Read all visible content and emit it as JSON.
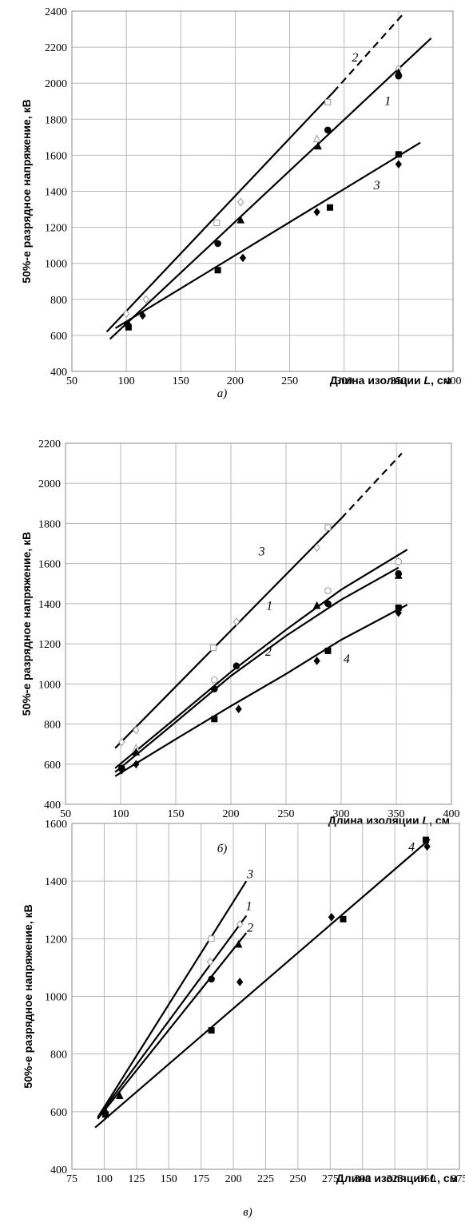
{
  "chart_data": [
    {
      "type": "scatter",
      "panel_label": "а)",
      "ylabel": "50%-е разрядное напряжение, кВ",
      "xlabel_prefix": "Длина изоляции ",
      "xlabel_var": "L",
      "xlabel_suffix": ", см",
      "xlim": [
        50,
        400
      ],
      "ylim": [
        400,
        2400
      ],
      "xticks": [
        50,
        100,
        150,
        200,
        250,
        300,
        350,
        400
      ],
      "yticks": [
        400,
        600,
        800,
        1000,
        1200,
        1400,
        1600,
        1800,
        2000,
        2200,
        2400
      ],
      "grid": true,
      "lines": [
        {
          "name": "1",
          "points": [
            [
              85,
              580
            ],
            [
              380,
              2250
            ]
          ],
          "dashed": false
        },
        {
          "name": "2",
          "points": [
            [
              82,
              620
            ],
            [
              290,
              1950
            ]
          ],
          "dashed": false
        },
        {
          "name": "2",
          "points": [
            [
              290,
              1950
            ],
            [
              355,
              2390
            ]
          ],
          "dashed": true
        },
        {
          "name": "3",
          "points": [
            [
              90,
              640
            ],
            [
              370,
              1670
            ]
          ],
          "dashed": false
        }
      ],
      "line_labels": [
        {
          "text": "2",
          "x": 310,
          "y": 2120
        },
        {
          "text": "1",
          "x": 340,
          "y": 1880
        },
        {
          "text": "3",
          "x": 330,
          "y": 1410
        }
      ],
      "markers": [
        {
          "shape": "square-open",
          "points": [
            [
              183,
              1225
            ],
            [
              285,
              1895
            ]
          ]
        },
        {
          "shape": "diamond-open",
          "points": [
            [
              100,
              720
            ],
            [
              118,
              800
            ],
            [
              205,
              1340
            ],
            [
              350,
              2080
            ]
          ]
        },
        {
          "shape": "triangle-open",
          "points": [
            [
              275,
              1690
            ]
          ]
        },
        {
          "shape": "circle-filled",
          "points": [
            [
              101,
              660
            ],
            [
              184,
              1110
            ],
            [
              285,
              1740
            ],
            [
              350,
              2040
            ]
          ]
        },
        {
          "shape": "triangle-filled",
          "points": [
            [
              205,
              1240
            ],
            [
              276,
              1650
            ],
            [
              350,
              2060
            ]
          ]
        },
        {
          "shape": "square-filled",
          "points": [
            [
              102,
              645
            ],
            [
              184,
              962
            ],
            [
              287,
              1310
            ],
            [
              350,
              1605
            ]
          ]
        },
        {
          "shape": "diamond-filled",
          "points": [
            [
              115,
              710
            ],
            [
              207,
              1030
            ],
            [
              275,
              1285
            ],
            [
              350,
              1550
            ]
          ]
        }
      ]
    },
    {
      "type": "scatter",
      "panel_label": "б)",
      "ylabel": "50%-е разрядное напряжение, кВ",
      "xlabel_prefix": "Длина изоляции ",
      "xlabel_var": "L",
      "xlabel_suffix": ", см",
      "xlim": [
        50,
        400
      ],
      "ylim": [
        400,
        2200
      ],
      "xticks": [
        50,
        100,
        150,
        200,
        250,
        300,
        350,
        400
      ],
      "yticks": [
        400,
        600,
        800,
        1000,
        1200,
        1400,
        1600,
        1800,
        2000,
        2200
      ],
      "grid": true,
      "lines": [
        {
          "name": "3",
          "points": [
            [
              95,
              680
            ],
            [
              300,
              1825
            ]
          ],
          "dashed": false
        },
        {
          "name": "3",
          "points": [
            [
              300,
              1825
            ],
            [
              355,
              2150
            ]
          ],
          "dashed": true
        },
        {
          "name": "1",
          "points": [
            [
              95,
              580
            ],
            [
              150,
              830
            ],
            [
              200,
              1060
            ],
            [
              250,
              1270
            ],
            [
              300,
              1470
            ],
            [
              360,
              1670
            ]
          ],
          "dashed": false
        },
        {
          "name": "2",
          "points": [
            [
              95,
              560
            ],
            [
              150,
              810
            ],
            [
              200,
              1040
            ],
            [
              250,
              1240
            ],
            [
              300,
              1420
            ],
            [
              352,
              1580
            ]
          ],
          "dashed": false
        },
        {
          "name": "4",
          "points": [
            [
              95,
              540
            ],
            [
              150,
              725
            ],
            [
              200,
              890
            ],
            [
              250,
              1050
            ],
            [
              300,
              1220
            ],
            [
              360,
              1395
            ]
          ],
          "dashed": false
        }
      ],
      "line_labels": [
        {
          "text": "3",
          "x": 228,
          "y": 1640
        },
        {
          "text": "1",
          "x": 235,
          "y": 1370
        },
        {
          "text": "2",
          "x": 234,
          "y": 1140
        },
        {
          "text": "4",
          "x": 305,
          "y": 1105
        }
      ],
      "markers": [
        {
          "shape": "square-open",
          "points": [
            [
              184,
              1180
            ],
            [
              288,
              1780
            ]
          ]
        },
        {
          "shape": "diamond-open",
          "points": [
            [
              101,
              710
            ],
            [
              114,
              770
            ],
            [
              205,
              1310
            ],
            [
              278,
              1680
            ],
            [
              352,
              1610
            ]
          ]
        },
        {
          "shape": "circle-open",
          "points": [
            [
              185,
              1020
            ],
            [
              288,
              1465
            ],
            [
              352,
              1610
            ]
          ]
        },
        {
          "shape": "triangle-open",
          "points": [
            [
              114,
              680
            ]
          ]
        },
        {
          "shape": "circle-filled",
          "points": [
            [
              101,
              580
            ],
            [
              185,
              975
            ],
            [
              205,
              1090
            ],
            [
              288,
              1400
            ],
            [
              352,
              1550
            ]
          ]
        },
        {
          "shape": "triangle-filled",
          "points": [
            [
              114,
              660
            ],
            [
              278,
              1390
            ],
            [
              352,
              1540
            ]
          ]
        },
        {
          "shape": "square-filled",
          "points": [
            [
              185,
              825
            ],
            [
              288,
              1165
            ],
            [
              352,
              1380
            ]
          ]
        },
        {
          "shape": "diamond-filled",
          "points": [
            [
              101,
              570
            ],
            [
              114,
              600
            ],
            [
              207,
              875
            ],
            [
              278,
              1115
            ],
            [
              352,
              1355
            ]
          ]
        }
      ]
    },
    {
      "type": "scatter",
      "panel_label": "в)",
      "ylabel": "50%-е разрядное напряжение, кВ",
      "xlabel_prefix": "Длина изоляции ",
      "xlabel_var": "L",
      "xlabel_suffix": ", см",
      "xlim": [
        75,
        375
      ],
      "ylim": [
        400,
        1600
      ],
      "xticks": [
        75,
        100,
        125,
        150,
        175,
        200,
        225,
        250,
        275,
        300,
        325,
        350,
        375
      ],
      "yticks": [
        400,
        600,
        800,
        1000,
        1200,
        1400,
        1600
      ],
      "grid": true,
      "lines": [
        {
          "name": "3",
          "points": [
            [
              95,
              580
            ],
            [
              210,
              1400
            ]
          ],
          "dashed": false
        },
        {
          "name": "1",
          "points": [
            [
              95,
              580
            ],
            [
              210,
              1280
            ]
          ],
          "dashed": false
        },
        {
          "name": "2",
          "points": [
            [
              95,
              575
            ],
            [
              210,
              1220
            ]
          ],
          "dashed": false
        },
        {
          "name": "4",
          "points": [
            [
              93,
              545
            ],
            [
              352,
              1545
            ]
          ],
          "dashed": false
        }
      ],
      "line_labels": [
        {
          "text": "3",
          "x": 213,
          "y": 1410
        },
        {
          "text": "1",
          "x": 212,
          "y": 1300
        },
        {
          "text": "2",
          "x": 213,
          "y": 1225
        },
        {
          "text": "4",
          "x": 338,
          "y": 1505
        }
      ],
      "markers": [
        {
          "shape": "square-open",
          "points": [
            [
              183,
              1200
            ]
          ]
        },
        {
          "shape": "diamond-open",
          "points": [
            [
              182,
              1120
            ],
            [
              205,
              1250
            ]
          ]
        },
        {
          "shape": "circle-filled",
          "points": [
            [
              100,
              600
            ],
            [
              183,
              1060
            ]
          ]
        },
        {
          "shape": "triangle-filled",
          "points": [
            [
              112,
              655
            ],
            [
              204,
              1180
            ]
          ]
        },
        {
          "shape": "square-filled",
          "points": [
            [
              101,
              590
            ],
            [
              183,
              882
            ],
            [
              285,
              1268
            ],
            [
              349,
              1543
            ]
          ]
        },
        {
          "shape": "diamond-filled",
          "points": [
            [
              205,
              1050
            ],
            [
              276,
              1275
            ],
            [
              350,
              1520
            ]
          ]
        }
      ]
    }
  ]
}
